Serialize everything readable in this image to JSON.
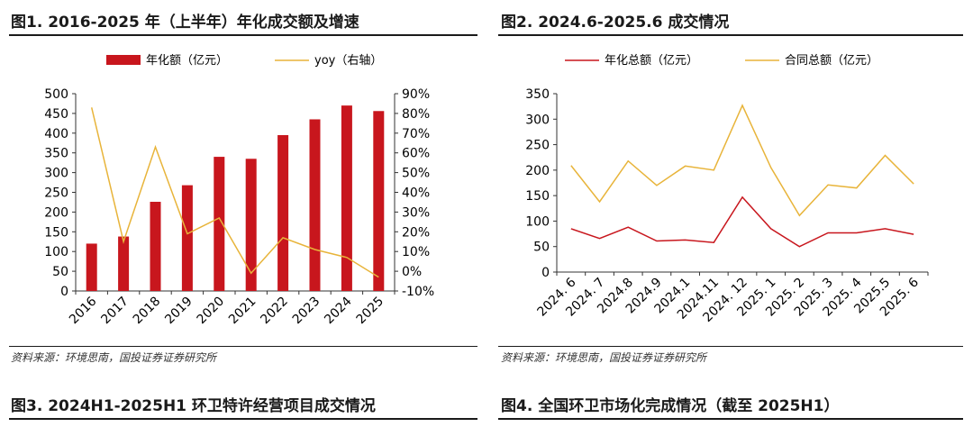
{
  "fig1": {
    "title": "图1. 2016-2025 年（上半年）年化成交额及增速",
    "source": "资料来源：环境思南，国投证券证券研究所"
  },
  "fig2": {
    "title": "图2. 2024.6-2025.6 成交情况",
    "source": "资料来源：环境思南，国投证券证券研究所"
  },
  "fig3": {
    "title": "图3. 2024H1-2025H1 环卫特许经营项目成交情况"
  },
  "fig4": {
    "title": "图4. 全国环卫市场化完成情况（截至 2025H1）"
  },
  "chart_data": [
    {
      "type": "bar",
      "categories": [
        "2016",
        "2017",
        "2018",
        "2019",
        "2020",
        "2021",
        "2022",
        "2023",
        "2024",
        "2025"
      ],
      "series": [
        {
          "name": "年化额（亿元）",
          "type": "bar",
          "axis": "left",
          "color": "#c8161d",
          "values": [
            120,
            138,
            226,
            268,
            340,
            335,
            395,
            435,
            470,
            456
          ]
        },
        {
          "name": "yoy（右轴）",
          "type": "line",
          "axis": "right",
          "color": "#e8b43a",
          "values": [
            83,
            15,
            63,
            19,
            27,
            -1,
            17,
            11,
            7,
            -3
          ]
        }
      ],
      "ylim": [
        0,
        500
      ],
      "yticks": [
        "0",
        "50",
        "100",
        "150",
        "200",
        "250",
        "300",
        "350",
        "400",
        "450",
        "500"
      ],
      "y2lim": [
        -10,
        90
      ],
      "y2ticks": [
        "-10%",
        "0%",
        "10%",
        "20%",
        "30%",
        "40%",
        "50%",
        "60%",
        "70%",
        "80%",
        "90%"
      ],
      "legend": "top",
      "grid": false
    },
    {
      "type": "line",
      "categories": [
        "2024. 6",
        "2024. 7",
        "2024.8",
        "2024.9",
        "2024.1",
        "2024.11",
        "2024. 12",
        "2025. 1",
        "2025. 2",
        "2025. 3",
        "2025. 4",
        "2025.5",
        "2025. 6"
      ],
      "series": [
        {
          "name": "年化总额（亿元）",
          "color": "#c8161d",
          "values": [
            85,
            66,
            88,
            61,
            63,
            58,
            147,
            85,
            50,
            77,
            77,
            85,
            74
          ]
        },
        {
          "name": "合同总额（亿元）",
          "color": "#e8b43a",
          "values": [
            209,
            138,
            218,
            170,
            208,
            200,
            327,
            205,
            111,
            171,
            165,
            229,
            173
          ]
        }
      ],
      "ylim": [
        0,
        350
      ],
      "yticks": [
        "0",
        "50",
        "100",
        "150",
        "200",
        "250",
        "300",
        "350"
      ],
      "legend": "top",
      "grid": false
    }
  ]
}
